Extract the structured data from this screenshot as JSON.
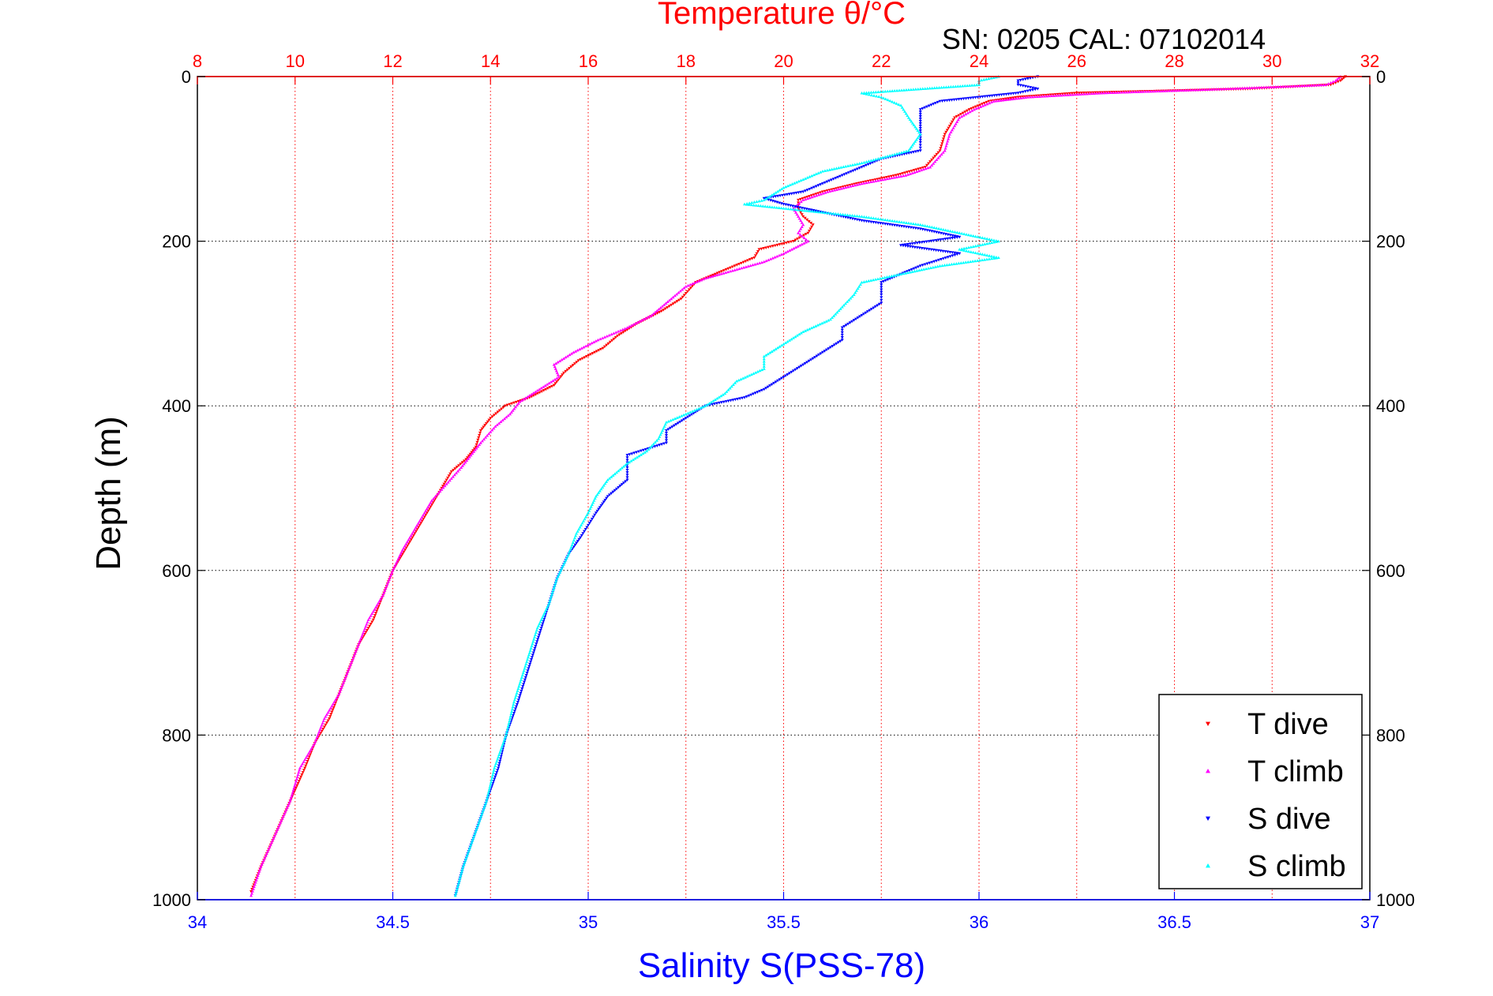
{
  "chart_data": {
    "type": "scatter",
    "top_axis": {
      "label": "Temperature θ/°C",
      "ticks": [
        "8",
        "10",
        "12",
        "14",
        "16",
        "18",
        "20",
        "22",
        "24",
        "26",
        "28",
        "30",
        "32"
      ],
      "range": [
        8,
        32
      ],
      "color": "#ff0000"
    },
    "bottom_axis": {
      "label": "Salinity S(PSS-78)",
      "ticks": [
        "34",
        "34.5",
        "35",
        "35.5",
        "36",
        "36.5",
        "37"
      ],
      "range": [
        34,
        37
      ],
      "color": "#0000ff"
    },
    "y_axis": {
      "label": "Depth (m)",
      "ticks": [
        "0",
        "200",
        "400",
        "600",
        "800",
        "1000"
      ],
      "range": [
        0,
        1000
      ],
      "reversed": true
    },
    "annotation": "SN: 0205  CAL: 07102014",
    "grid": true,
    "legend_position": "bottom-right",
    "legend": [
      "T dive",
      "T climb",
      "S dive",
      "S climb"
    ],
    "series": [
      {
        "name": "T dive",
        "axis": "top",
        "color": "#ff0000",
        "marker": "down-triangle",
        "points": [
          [
            31.5,
            0
          ],
          [
            31.4,
            5
          ],
          [
            31.2,
            10
          ],
          [
            29.5,
            15
          ],
          [
            26,
            20
          ],
          [
            24.8,
            25
          ],
          [
            24.2,
            30
          ],
          [
            23.8,
            40
          ],
          [
            23.5,
            50
          ],
          [
            23.3,
            70
          ],
          [
            23.2,
            90
          ],
          [
            22.9,
            110
          ],
          [
            22.3,
            120
          ],
          [
            21.5,
            130
          ],
          [
            20.8,
            140
          ],
          [
            20.3,
            150
          ],
          [
            20.3,
            160
          ],
          [
            20.4,
            170
          ],
          [
            20.6,
            180
          ],
          [
            20.5,
            190
          ],
          [
            20.2,
            200
          ],
          [
            19.5,
            210
          ],
          [
            19.4,
            220
          ],
          [
            18.6,
            240
          ],
          [
            18.2,
            250
          ],
          [
            17.9,
            270
          ],
          [
            17.5,
            285
          ],
          [
            17,
            300
          ],
          [
            16.6,
            315
          ],
          [
            16.3,
            330
          ],
          [
            15.8,
            345
          ],
          [
            15.5,
            360
          ],
          [
            15.3,
            375
          ],
          [
            14.8,
            390
          ],
          [
            14.3,
            400
          ],
          [
            14,
            415
          ],
          [
            13.8,
            430
          ],
          [
            13.7,
            450
          ],
          [
            13.5,
            465
          ],
          [
            13.2,
            480
          ],
          [
            13,
            500
          ],
          [
            12.8,
            520
          ],
          [
            12.6,
            540
          ],
          [
            12.4,
            560
          ],
          [
            12.2,
            580
          ],
          [
            12,
            600
          ],
          [
            11.8,
            630
          ],
          [
            11.6,
            660
          ],
          [
            11.3,
            690
          ],
          [
            11.1,
            720
          ],
          [
            10.9,
            750
          ],
          [
            10.7,
            780
          ],
          [
            10.4,
            810
          ],
          [
            10.2,
            840
          ],
          [
            9.9,
            880
          ],
          [
            9.6,
            920
          ],
          [
            9.3,
            960
          ],
          [
            9.1,
            990
          ]
        ]
      },
      {
        "name": "T climb",
        "axis": "top",
        "color": "#ff00ff",
        "marker": "up-triangle",
        "points": [
          [
            31.4,
            0
          ],
          [
            31.3,
            5
          ],
          [
            31.1,
            10
          ],
          [
            29,
            15
          ],
          [
            26.5,
            20
          ],
          [
            25,
            25
          ],
          [
            24.3,
            30
          ],
          [
            23.9,
            40
          ],
          [
            23.6,
            50
          ],
          [
            23.4,
            70
          ],
          [
            23.3,
            90
          ],
          [
            23,
            110
          ],
          [
            22.5,
            120
          ],
          [
            21.6,
            130
          ],
          [
            20.9,
            140
          ],
          [
            20.4,
            150
          ],
          [
            20.2,
            160
          ],
          [
            20.3,
            170
          ],
          [
            20.4,
            180
          ],
          [
            20.3,
            190
          ],
          [
            20.5,
            200
          ],
          [
            20,
            215
          ],
          [
            19.6,
            225
          ],
          [
            19,
            235
          ],
          [
            18.4,
            245
          ],
          [
            18,
            255
          ],
          [
            17.7,
            270
          ],
          [
            17.3,
            290
          ],
          [
            16.8,
            305
          ],
          [
            16.2,
            320
          ],
          [
            15.7,
            335
          ],
          [
            15.3,
            350
          ],
          [
            15.4,
            365
          ],
          [
            15,
            380
          ],
          [
            14.6,
            395
          ],
          [
            14.4,
            410
          ],
          [
            14.1,
            425
          ],
          [
            13.8,
            445
          ],
          [
            13.6,
            460
          ],
          [
            13.4,
            475
          ],
          [
            13.1,
            495
          ],
          [
            12.8,
            515
          ],
          [
            12.6,
            535
          ],
          [
            12.4,
            555
          ],
          [
            12.2,
            575
          ],
          [
            12,
            600
          ],
          [
            11.8,
            630
          ],
          [
            11.5,
            660
          ],
          [
            11.3,
            690
          ],
          [
            11.1,
            720
          ],
          [
            10.9,
            750
          ],
          [
            10.6,
            780
          ],
          [
            10.4,
            810
          ],
          [
            10.1,
            840
          ],
          [
            9.9,
            880
          ],
          [
            9.6,
            920
          ],
          [
            9.3,
            960
          ],
          [
            9.1,
            995
          ]
        ]
      },
      {
        "name": "S dive",
        "axis": "bottom",
        "color": "#0000ff",
        "marker": "down-triangle",
        "points": [
          [
            36.15,
            0
          ],
          [
            36.1,
            5
          ],
          [
            36.1,
            10
          ],
          [
            36.15,
            15
          ],
          [
            36.1,
            20
          ],
          [
            35.9,
            30
          ],
          [
            35.85,
            40
          ],
          [
            35.85,
            60
          ],
          [
            35.85,
            80
          ],
          [
            35.85,
            90
          ],
          [
            35.75,
            100
          ],
          [
            35.7,
            110
          ],
          [
            35.65,
            120
          ],
          [
            35.6,
            130
          ],
          [
            35.55,
            140
          ],
          [
            35.45,
            148
          ],
          [
            35.5,
            155
          ],
          [
            35.6,
            165
          ],
          [
            35.7,
            175
          ],
          [
            35.85,
            185
          ],
          [
            35.95,
            195
          ],
          [
            35.8,
            205
          ],
          [
            35.95,
            215
          ],
          [
            35.85,
            230
          ],
          [
            35.8,
            240
          ],
          [
            35.75,
            250
          ],
          [
            35.75,
            265
          ],
          [
            35.75,
            275
          ],
          [
            35.7,
            290
          ],
          [
            35.65,
            305
          ],
          [
            35.65,
            320
          ],
          [
            35.6,
            335
          ],
          [
            35.55,
            350
          ],
          [
            35.5,
            365
          ],
          [
            35.45,
            380
          ],
          [
            35.4,
            390
          ],
          [
            35.3,
            400
          ],
          [
            35.25,
            415
          ],
          [
            35.2,
            430
          ],
          [
            35.2,
            445
          ],
          [
            35.1,
            460
          ],
          [
            35.1,
            475
          ],
          [
            35.1,
            490
          ],
          [
            35.05,
            510
          ],
          [
            35.02,
            530
          ],
          [
            34.98,
            560
          ],
          [
            34.95,
            580
          ],
          [
            34.92,
            610
          ],
          [
            34.9,
            640
          ],
          [
            34.88,
            670
          ],
          [
            34.86,
            700
          ],
          [
            34.84,
            730
          ],
          [
            34.82,
            760
          ],
          [
            34.79,
            800
          ],
          [
            34.77,
            840
          ],
          [
            34.74,
            880
          ],
          [
            34.71,
            920
          ],
          [
            34.68,
            960
          ],
          [
            34.66,
            995
          ]
        ]
      },
      {
        "name": "S climb",
        "axis": "bottom",
        "color": "#00ffff",
        "marker": "up-triangle",
        "points": [
          [
            36.05,
            0
          ],
          [
            36,
            5
          ],
          [
            36.0,
            10
          ],
          [
            35.7,
            20
          ],
          [
            35.75,
            25
          ],
          [
            35.8,
            35
          ],
          [
            35.82,
            50
          ],
          [
            35.85,
            70
          ],
          [
            35.82,
            90
          ],
          [
            35.7,
            105
          ],
          [
            35.6,
            115
          ],
          [
            35.55,
            125
          ],
          [
            35.5,
            135
          ],
          [
            35.45,
            150
          ],
          [
            35.4,
            155
          ],
          [
            35.5,
            160
          ],
          [
            35.7,
            170
          ],
          [
            35.85,
            180
          ],
          [
            35.95,
            190
          ],
          [
            36.05,
            200
          ],
          [
            35.95,
            210
          ],
          [
            36.05,
            220
          ],
          [
            35.9,
            230
          ],
          [
            35.8,
            240
          ],
          [
            35.7,
            250
          ],
          [
            35.68,
            265
          ],
          [
            35.65,
            280
          ],
          [
            35.62,
            295
          ],
          [
            35.55,
            310
          ],
          [
            35.5,
            325
          ],
          [
            35.45,
            340
          ],
          [
            35.45,
            355
          ],
          [
            35.38,
            370
          ],
          [
            35.35,
            385
          ],
          [
            35.3,
            400
          ],
          [
            35.2,
            420
          ],
          [
            35.18,
            440
          ],
          [
            35.15,
            455
          ],
          [
            35.1,
            470
          ],
          [
            35.05,
            490
          ],
          [
            35.02,
            510
          ],
          [
            35,
            530
          ],
          [
            34.97,
            555
          ],
          [
            34.95,
            580
          ],
          [
            34.92,
            610
          ],
          [
            34.9,
            640
          ],
          [
            34.87,
            670
          ],
          [
            34.85,
            700
          ],
          [
            34.83,
            730
          ],
          [
            34.81,
            760
          ],
          [
            34.79,
            800
          ],
          [
            34.76,
            840
          ],
          [
            34.74,
            880
          ],
          [
            34.71,
            920
          ],
          [
            34.68,
            960
          ],
          [
            34.66,
            995
          ]
        ]
      }
    ]
  }
}
